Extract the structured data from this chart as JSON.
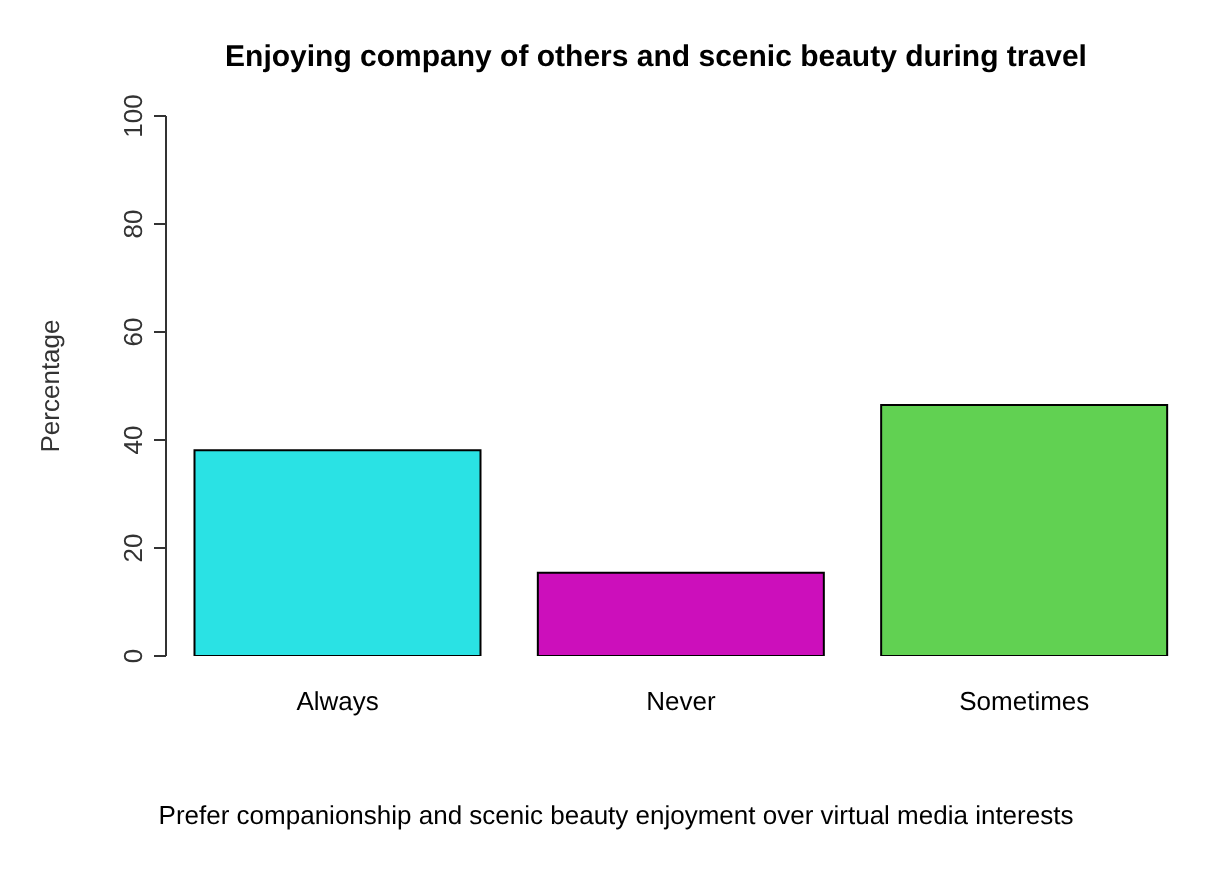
{
  "chart_data": {
    "type": "bar",
    "title": "Enjoying company of others and scenic beauty during travel",
    "xlabel": "Prefer companionship and scenic beauty enjoyment over virtual media interests",
    "ylabel": "Percentage",
    "categories": [
      "Always",
      "Never",
      "Sometimes"
    ],
    "values": [
      38.1,
      15.4,
      46.5
    ],
    "colors": [
      "#2ae2e4",
      "#cc0fbb",
      "#61d152"
    ],
    "ylim": [
      0,
      100
    ],
    "yticks": [
      0,
      20,
      40,
      60,
      80,
      100
    ],
    "grid": false,
    "legend": false
  }
}
